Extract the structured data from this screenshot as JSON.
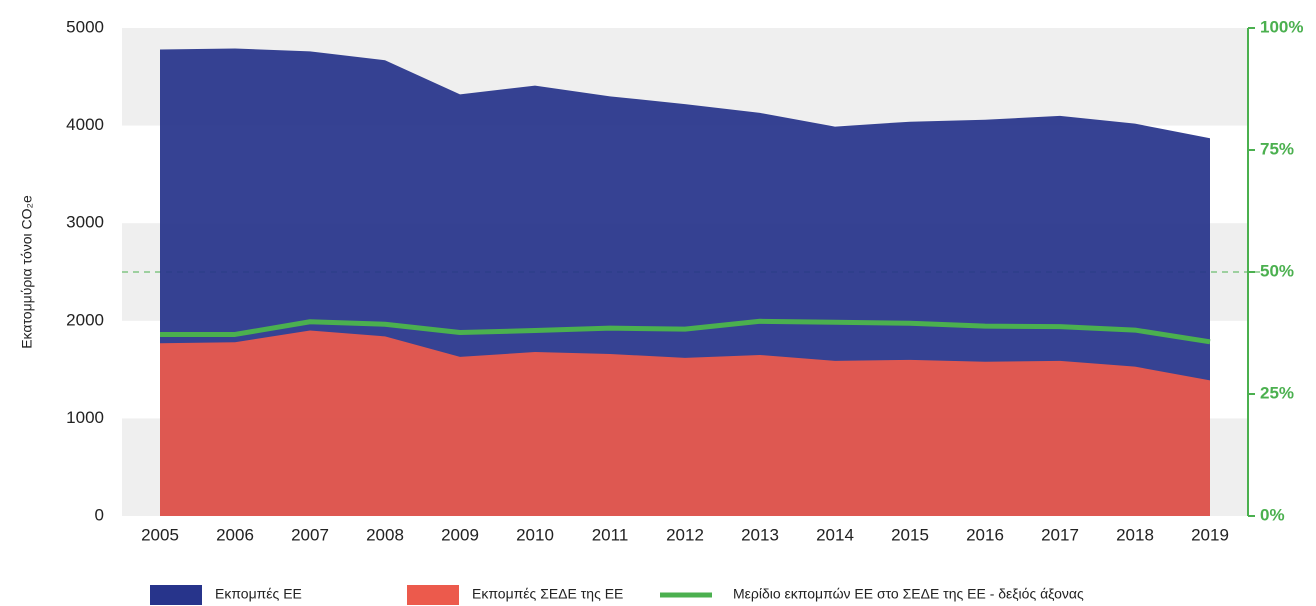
{
  "chart_data": {
    "type": "area",
    "y_label": "Εκατομμύρια τόνοι CO₂e",
    "categories": [
      "2005",
      "2006",
      "2007",
      "2008",
      "2009",
      "2010",
      "2011",
      "2012",
      "2013",
      "2014",
      "2015",
      "2016",
      "2017",
      "2018",
      "2019"
    ],
    "series": [
      {
        "name": "Εκπομπές ΕΕ",
        "type": "area",
        "color": "#27348b",
        "values": [
          4780,
          4790,
          4760,
          4670,
          4320,
          4410,
          4300,
          4220,
          4130,
          3990,
          4040,
          4060,
          4100,
          4020,
          3870
        ]
      },
      {
        "name": "Εκπομπές ΣΕΔΕ της ΕΕ",
        "type": "area",
        "color": "#ec5a4c",
        "values": [
          1770,
          1780,
          1900,
          1840,
          1630,
          1680,
          1660,
          1620,
          1650,
          1590,
          1600,
          1580,
          1590,
          1530,
          1390
        ]
      },
      {
        "name": "Μερίδιο εκπομπών ΕΕ στο ΣΕΔΕ της ΕΕ - δεξιός άξονας",
        "type": "line",
        "axis": "y2",
        "color": "#4bb04f",
        "values": [
          37.2,
          37.2,
          39.8,
          39.3,
          37.6,
          38.0,
          38.5,
          38.3,
          39.9,
          39.7,
          39.5,
          38.9,
          38.8,
          38.1,
          35.7
        ]
      }
    ],
    "ylim": [
      0,
      5000
    ],
    "yticks": [
      0,
      1000,
      2000,
      3000,
      4000,
      5000
    ],
    "y2lim": [
      0,
      100
    ],
    "y2ticks": [
      {
        "value": 0,
        "label": "0%"
      },
      {
        "value": 25,
        "label": "25%"
      },
      {
        "value": 50,
        "label": "50%"
      },
      {
        "value": 75,
        "label": "75%"
      },
      {
        "value": 100,
        "label": "100%"
      }
    ],
    "reference_lines": [
      {
        "axis": "y2",
        "value": 50,
        "color": "#4bb04f"
      }
    ],
    "grid": "bands",
    "legend": "bottom"
  }
}
